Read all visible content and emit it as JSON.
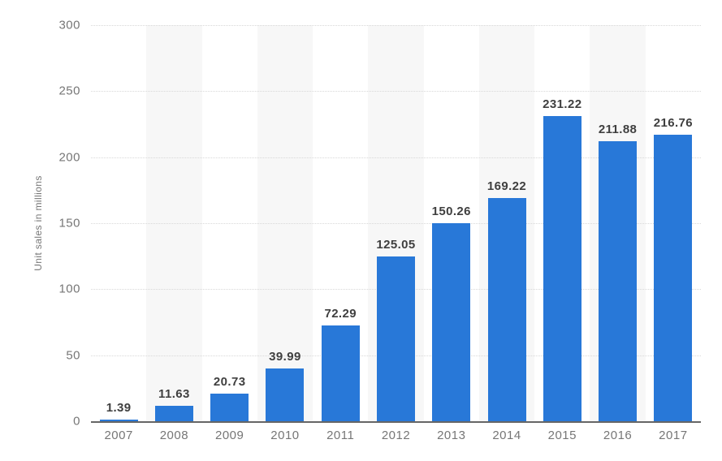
{
  "chart_data": {
    "type": "bar",
    "title": "",
    "xlabel": "",
    "ylabel": "Unit sales in millions",
    "categories": [
      "2007",
      "2008",
      "2009",
      "2010",
      "2011",
      "2012",
      "2013",
      "2014",
      "2015",
      "2016",
      "2017"
    ],
    "values": [
      1.39,
      11.63,
      20.73,
      39.99,
      72.29,
      125.05,
      150.26,
      169.22,
      231.22,
      211.88,
      216.76
    ],
    "ylim": [
      0,
      300
    ],
    "yticks": [
      0,
      50,
      100,
      150,
      200,
      250,
      300
    ],
    "grid": "horizontal-dotted",
    "legend": "none",
    "layout_hints": {
      "shaded_column_indices": [
        1,
        3,
        5,
        7,
        9
      ],
      "value_label_decimals": 2
    },
    "colors": {
      "bar": "#2878d8",
      "column_band": "#f7f7f7",
      "gridline": "#d8d8d8",
      "axis_line": "#666666",
      "tick_label": "#767676",
      "value_label": "#3f3f3f",
      "background": "#ffffff"
    }
  }
}
